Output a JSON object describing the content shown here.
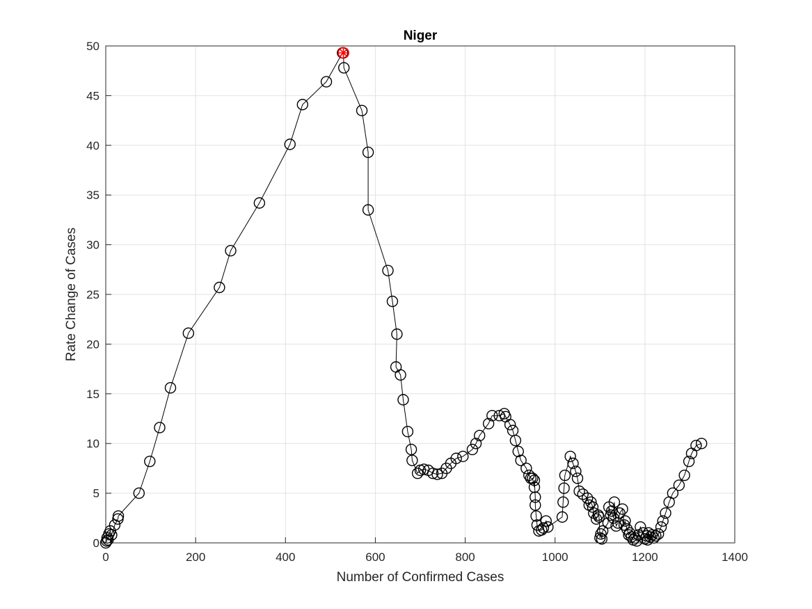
{
  "chart_data": {
    "type": "scatter",
    "title": "Niger",
    "xlabel": "Number of Confirmed Cases",
    "ylabel": "Rate Change of Cases",
    "xlim": [
      0,
      1400
    ],
    "ylim": [
      0,
      50
    ],
    "xticks": [
      "0",
      "200",
      "400",
      "600",
      "800",
      "1000",
      "1200",
      "1400"
    ],
    "yticks": [
      "0",
      "5",
      "10",
      "15",
      "20",
      "25",
      "30",
      "35",
      "40",
      "45",
      "50"
    ],
    "grid": true,
    "line_color": "#000000",
    "marker_color": "#000000",
    "highlight_color": "#ff0000",
    "highlight_point": {
      "x": 529,
      "y": 49.3
    },
    "series": [
      {
        "x": [
          0,
          2,
          3,
          5,
          7,
          10,
          13,
          20,
          27,
          28,
          74,
          98,
          120,
          144,
          184,
          253,
          278,
          342,
          410,
          438,
          491,
          527,
          529,
          530,
          570,
          584,
          584,
          628,
          638,
          648,
          646,
          656,
          662,
          672,
          680,
          682,
          694,
          700,
          708,
          718,
          728,
          738,
          748,
          758,
          768,
          780,
          795,
          816,
          824,
          832,
          852,
          860,
          876,
          887,
          890,
          900,
          906,
          912,
          918,
          924,
          936,
          942,
          946,
          950,
          954,
          954,
          956,
          956,
          958,
          960,
          964,
          970,
          974,
          980,
          984,
          1016,
          1018,
          1020,
          1022,
          1034,
          1040,
          1046,
          1050,
          1054,
          1062,
          1072,
          1076,
          1080,
          1084,
          1086,
          1092,
          1096,
          1098,
          1100,
          1102,
          1104,
          1106,
          1118,
          1120,
          1124,
          1126,
          1130,
          1132,
          1136,
          1140,
          1144,
          1150,
          1154,
          1156,
          1160,
          1164,
          1166,
          1170,
          1174,
          1178,
          1182,
          1186,
          1190,
          1196,
          1200,
          1204,
          1206,
          1208,
          1212,
          1216,
          1220,
          1224,
          1230,
          1236,
          1240,
          1246,
          1254,
          1262,
          1276,
          1288,
          1298,
          1304,
          1314,
          1326
        ],
        "y": [
          0,
          0.2,
          0.5,
          0.3,
          0.9,
          1.2,
          0.8,
          1.8,
          2.4,
          2.7,
          5.0,
          8.2,
          11.6,
          15.6,
          21.1,
          25.7,
          29.4,
          34.2,
          40.1,
          44.1,
          46.4,
          49.3,
          49.3,
          47.8,
          43.5,
          39.3,
          33.5,
          27.4,
          24.3,
          21.0,
          17.7,
          16.9,
          14.4,
          11.2,
          9.4,
          8.3,
          7.0,
          7.3,
          7.4,
          7.3,
          7.0,
          6.9,
          7.0,
          7.5,
          8.0,
          8.5,
          8.7,
          9.4,
          10.0,
          10.8,
          12.0,
          12.8,
          12.8,
          13.0,
          12.7,
          11.9,
          11.3,
          10.3,
          9.2,
          8.3,
          7.5,
          6.8,
          6.5,
          6.5,
          5.6,
          6.3,
          4.6,
          3.8,
          2.7,
          1.8,
          1.2,
          1.3,
          1.5,
          2.2,
          1.6,
          2.6,
          4.1,
          5.5,
          6.8,
          8.7,
          8.0,
          7.2,
          6.5,
          5.2,
          4.9,
          4.5,
          3.8,
          4.1,
          3.6,
          3.0,
          2.4,
          2.8,
          2.6,
          0.5,
          0.9,
          0.4,
          1.2,
          2.0,
          3.6,
          2.8,
          3.2,
          2.5,
          4.1,
          1.7,
          2.0,
          3.0,
          3.4,
          1.8,
          2.2,
          1.4,
          0.8,
          1.0,
          0.6,
          0.3,
          0.5,
          0.2,
          0.8,
          1.6,
          1.0,
          0.4,
          0.7,
          0.3,
          1.0,
          0.6,
          0.8,
          0.5,
          0.7,
          0.9,
          1.6,
          2.2,
          3.0,
          4.1,
          5.0,
          5.8,
          6.8,
          8.2,
          9.0,
          9.8,
          10.0
        ]
      }
    ]
  }
}
